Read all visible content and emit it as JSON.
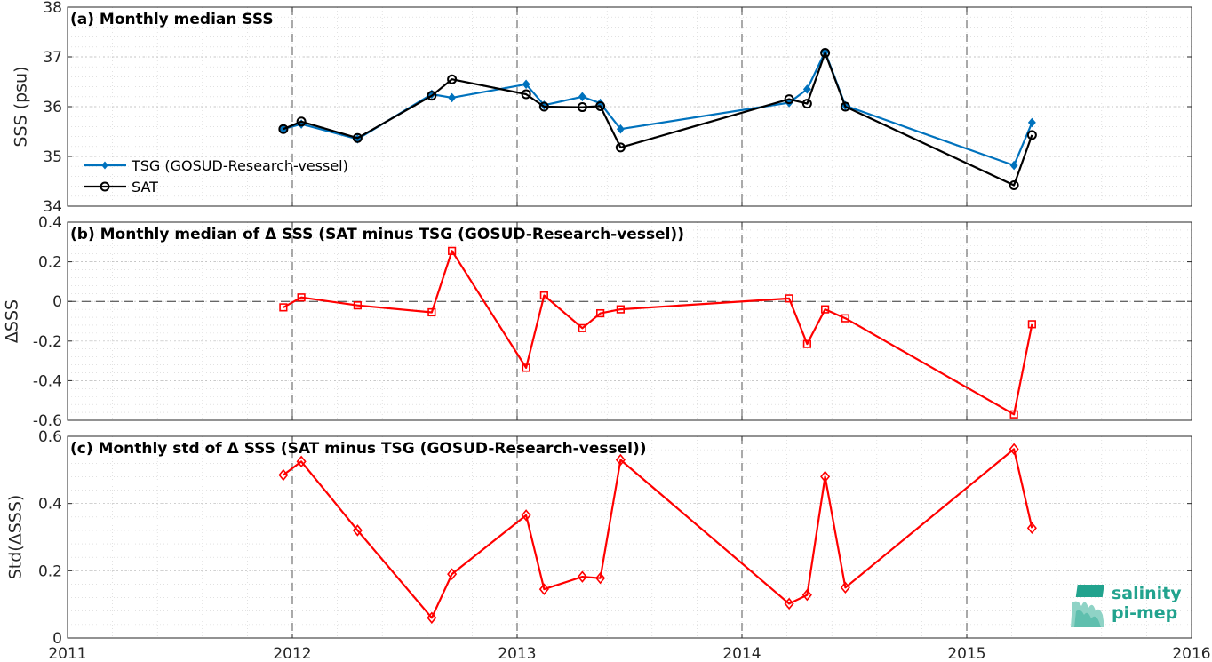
{
  "colors": {
    "tsg": "#0072BD",
    "sat": "#000000",
    "delta": "#ff0000",
    "grid": "#bdbdbd",
    "axis": "#262626",
    "logo": "#22a38e"
  },
  "logo": {
    "line1": "salinity",
    "line2": "pi-mep"
  },
  "chart_data": [
    {
      "type": "line",
      "title": "(a) Monthly median SSS",
      "ylabel": "SSS (psu)",
      "xlim": [
        2011,
        2016
      ],
      "ylim": [
        34,
        38
      ],
      "xticks": [
        "2011",
        "2012",
        "2013",
        "2014",
        "2015",
        "2016"
      ],
      "yticks": [
        "34",
        "35",
        "36",
        "37",
        "38"
      ],
      "grid": true,
      "legend": "left",
      "series": [
        {
          "name": "TSG (GOSUD-Research-vessel)",
          "marker": "diamond",
          "x": [
            2011.96,
            2012.04,
            2012.29,
            2012.62,
            2012.71,
            2013.04,
            2013.12,
            2013.29,
            2013.37,
            2013.46,
            2014.21,
            2014.29,
            2014.37,
            2014.46,
            2015.21,
            2015.29
          ],
          "y": [
            35.55,
            35.65,
            35.35,
            36.25,
            36.18,
            36.45,
            36.03,
            36.2,
            36.07,
            35.55,
            36.08,
            36.35,
            37.1,
            36.02,
            34.82,
            35.68
          ]
        },
        {
          "name": "SAT",
          "marker": "circle",
          "x": [
            2011.96,
            2012.04,
            2012.29,
            2012.62,
            2012.71,
            2013.04,
            2013.12,
            2013.29,
            2013.37,
            2013.46,
            2014.21,
            2014.29,
            2014.37,
            2014.46,
            2015.21,
            2015.29
          ],
          "y": [
            35.55,
            35.7,
            35.37,
            36.22,
            36.55,
            36.25,
            36.0,
            35.99,
            36.01,
            35.18,
            36.15,
            36.06,
            37.08,
            36.0,
            34.42,
            35.43
          ]
        }
      ]
    },
    {
      "type": "line",
      "title": "(b) Monthly median of Δ SSS (SAT minus TSG (GOSUD-Research-vessel))",
      "ylabel": "ΔSSS",
      "xlim": [
        2011,
        2016
      ],
      "ylim": [
        -0.6,
        0.4
      ],
      "xticks": [
        "2011",
        "2012",
        "2013",
        "2014",
        "2015",
        "2016"
      ],
      "yticks": [
        "-0.6",
        "-0.4",
        "-0.2",
        "0",
        "0.2",
        "0.4"
      ],
      "grid": true,
      "reference_line": 0,
      "series": [
        {
          "marker": "square",
          "x": [
            2011.96,
            2012.04,
            2012.29,
            2012.62,
            2012.71,
            2013.04,
            2013.12,
            2013.29,
            2013.37,
            2013.46,
            2014.21,
            2014.29,
            2014.37,
            2014.46,
            2015.21,
            2015.29
          ],
          "y": [
            -0.03,
            0.02,
            -0.02,
            -0.055,
            0.255,
            -0.335,
            0.03,
            -0.135,
            -0.06,
            -0.04,
            0.015,
            -0.215,
            -0.04,
            -0.085,
            -0.57,
            -0.115
          ]
        }
      ]
    },
    {
      "type": "line",
      "title": "(c) Monthly std of Δ SSS (SAT minus TSG (GOSUD-Research-vessel))",
      "ylabel": "Std(ΔSSS)",
      "xlim": [
        2011,
        2016
      ],
      "ylim": [
        0,
        0.6
      ],
      "xticks": [
        "2011",
        "2012",
        "2013",
        "2014",
        "2015",
        "2016"
      ],
      "yticks": [
        "0",
        "0.2",
        "0.4",
        "0.6"
      ],
      "grid": true,
      "series": [
        {
          "marker": "diamond",
          "x": [
            2011.96,
            2012.04,
            2012.29,
            2012.62,
            2012.71,
            2013.04,
            2013.12,
            2013.29,
            2013.37,
            2013.46,
            2014.21,
            2014.29,
            2014.37,
            2014.46,
            2015.21,
            2015.29
          ],
          "y": [
            0.485,
            0.525,
            0.32,
            0.06,
            0.19,
            0.365,
            0.145,
            0.182,
            0.178,
            0.53,
            0.102,
            0.128,
            0.48,
            0.15,
            0.562,
            0.327
          ]
        }
      ]
    }
  ]
}
